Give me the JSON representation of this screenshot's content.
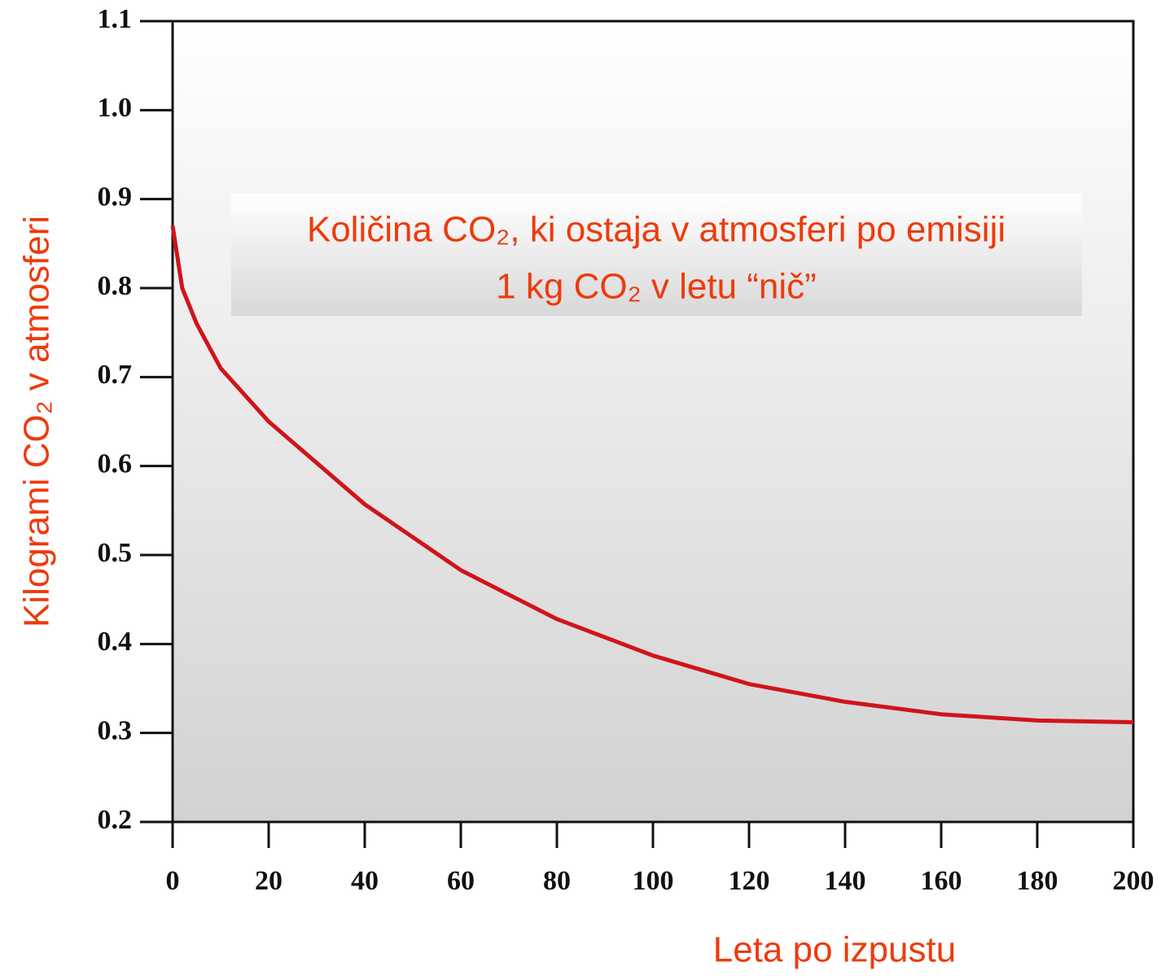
{
  "chart_data": {
    "type": "line",
    "title": [
      "Količina CO₂, ki ostaja v atmosferi po emisiji",
      "1 kg CO₂ v letu “nič”"
    ],
    "xlabel": "Leta po izpustu",
    "ylabel": "Kilogrami CO₂ v atmosferi",
    "x": [
      0,
      2,
      5,
      10,
      20,
      40,
      60,
      80,
      100,
      120,
      140,
      160,
      180,
      200
    ],
    "series": [
      {
        "name": "CO₂",
        "color": "#d0141a",
        "values": [
          0.87,
          0.8,
          0.76,
          0.71,
          0.65,
          0.557,
          0.483,
          0.428,
          0.387,
          0.355,
          0.335,
          0.321,
          0.314,
          0.312
        ]
      }
    ],
    "xlim": [
      0,
      200
    ],
    "xticks": [
      0,
      20,
      40,
      60,
      80,
      100,
      120,
      140,
      160,
      180,
      200
    ],
    "ylim": [
      0.2,
      1.1
    ],
    "yticks": [
      0.2,
      0.3,
      0.4,
      0.5,
      0.6,
      0.7,
      0.8,
      0.9,
      {
        "value": 1,
        "label": "1.0"
      },
      1.1
    ]
  }
}
